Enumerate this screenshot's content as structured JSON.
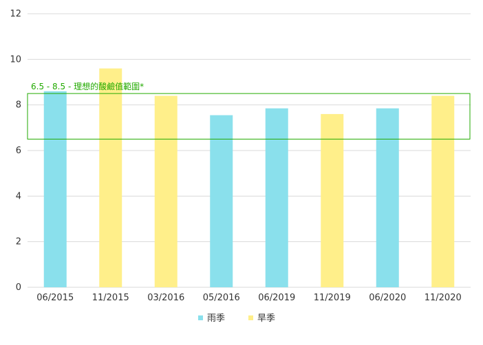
{
  "chart_data": {
    "type": "bar",
    "categories": [
      "06/2015",
      "11/2015",
      "03/2016",
      "05/2016",
      "06/2019",
      "11/2019",
      "06/2020",
      "11/2020"
    ],
    "values": [
      8.6,
      9.6,
      8.4,
      7.55,
      7.85,
      7.6,
      7.85,
      8.4
    ],
    "bar_series": [
      "雨季",
      "旱季",
      "旱季",
      "雨季",
      "雨季",
      "旱季",
      "雨季",
      "旱季"
    ],
    "series": [
      {
        "name": "雨季",
        "color": "#8ae0ec"
      },
      {
        "name": "旱季",
        "color": "#ffef8a"
      }
    ],
    "ylim": [
      0,
      12
    ],
    "yticks": [
      "0",
      "2",
      "4",
      "6",
      "8",
      "10",
      "12"
    ],
    "grid": true,
    "legend_position": "bottom-center",
    "band": {
      "from": 6.5,
      "to": 8.5,
      "label": "6.5 - 8.5 - 理想的酸鹼值範圍*",
      "color": "#22aa00"
    }
  }
}
